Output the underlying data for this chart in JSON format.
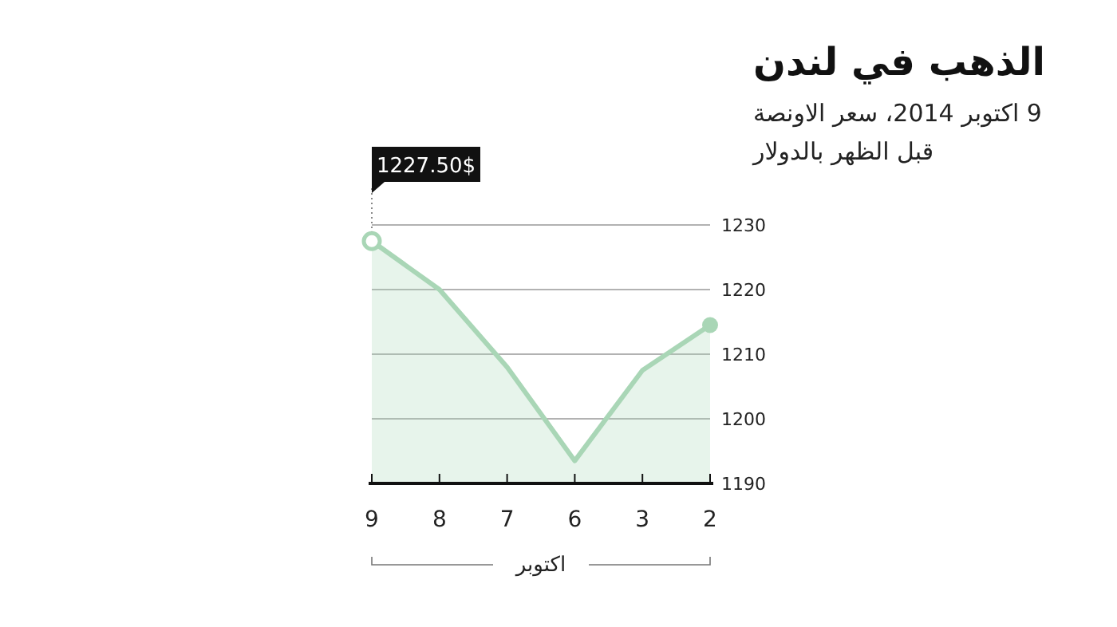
{
  "chart_data": {
    "type": "area",
    "title": "الذهب في لندن",
    "subtitle": "9 اكتوبر 2014، سعر الاونصة\nقبل الظهر بالدولار",
    "xlabel": "اكتوبر",
    "categories": [
      "9",
      "8",
      "7",
      "6",
      "3",
      "2"
    ],
    "series": [
      {
        "color": "#a9d6b6",
        "values": [
          1227.5,
          1220,
          1208,
          1193.5,
          1207.5,
          1214.5
        ]
      }
    ],
    "ylim": [
      1190,
      1230
    ],
    "yticks": [
      1190,
      1200,
      1210,
      1220,
      1230
    ],
    "grid": "y",
    "line_style": "solid",
    "annotations": [
      {
        "text": "1227.50$",
        "x": "9",
        "y": 1227.5
      }
    ]
  }
}
